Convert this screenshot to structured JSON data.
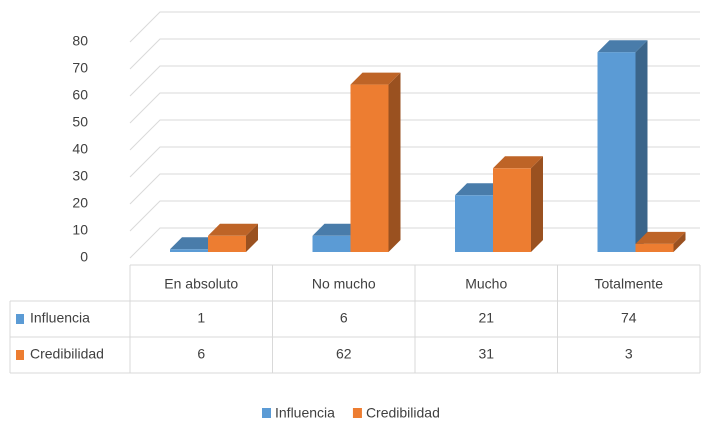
{
  "chart_data": {
    "type": "bar3d",
    "categories": [
      "En absoluto",
      "No mucho",
      "Mucho",
      "Totalmente"
    ],
    "series": [
      {
        "name": "Influencia",
        "color": "#5b9bd5",
        "values": [
          1,
          6,
          21,
          74
        ]
      },
      {
        "name": "Credibilidad",
        "color": "#ed7d31",
        "values": [
          6,
          62,
          31,
          3
        ]
      }
    ],
    "ylim": [
      0,
      80
    ],
    "yticks": [
      0,
      10,
      20,
      30,
      40,
      50,
      60,
      70,
      80
    ],
    "grid": true,
    "legend": "bottom"
  }
}
